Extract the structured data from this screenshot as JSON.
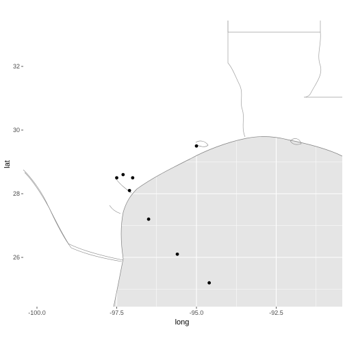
{
  "chart_data": {
    "type": "scatter",
    "xlabel": "long",
    "ylabel": "lat",
    "xlim": [
      -100.5,
      -90.5
    ],
    "ylim": [
      24.3,
      33.5
    ],
    "x_ticks": [
      -100.0,
      -97.5,
      -95.0,
      -92.5
    ],
    "x_tick_labels": [
      "-100.0",
      "-97.5",
      "-95.0",
      "-92.5"
    ],
    "y_ticks": [
      26,
      28,
      30,
      32
    ],
    "y_tick_labels": [
      "26",
      "28",
      "30",
      "32"
    ],
    "grid": true,
    "points": [
      {
        "x": -97.5,
        "y": 28.5
      },
      {
        "x": -97.3,
        "y": 28.6
      },
      {
        "x": -97.0,
        "y": 28.5
      },
      {
        "x": -97.1,
        "y": 28.1
      },
      {
        "x": -96.5,
        "y": 27.2
      },
      {
        "x": -95.0,
        "y": 29.5
      },
      {
        "x": -95.6,
        "y": 26.1
      },
      {
        "x": -94.6,
        "y": 25.2
      }
    ],
    "colors": {
      "gulf_fill": "#e5e5e5",
      "land_bg": "#ffffff",
      "grid": "#ffffff",
      "coastline": "#7f7f7f",
      "border": "#9e9e9e",
      "point": "#000000"
    }
  }
}
